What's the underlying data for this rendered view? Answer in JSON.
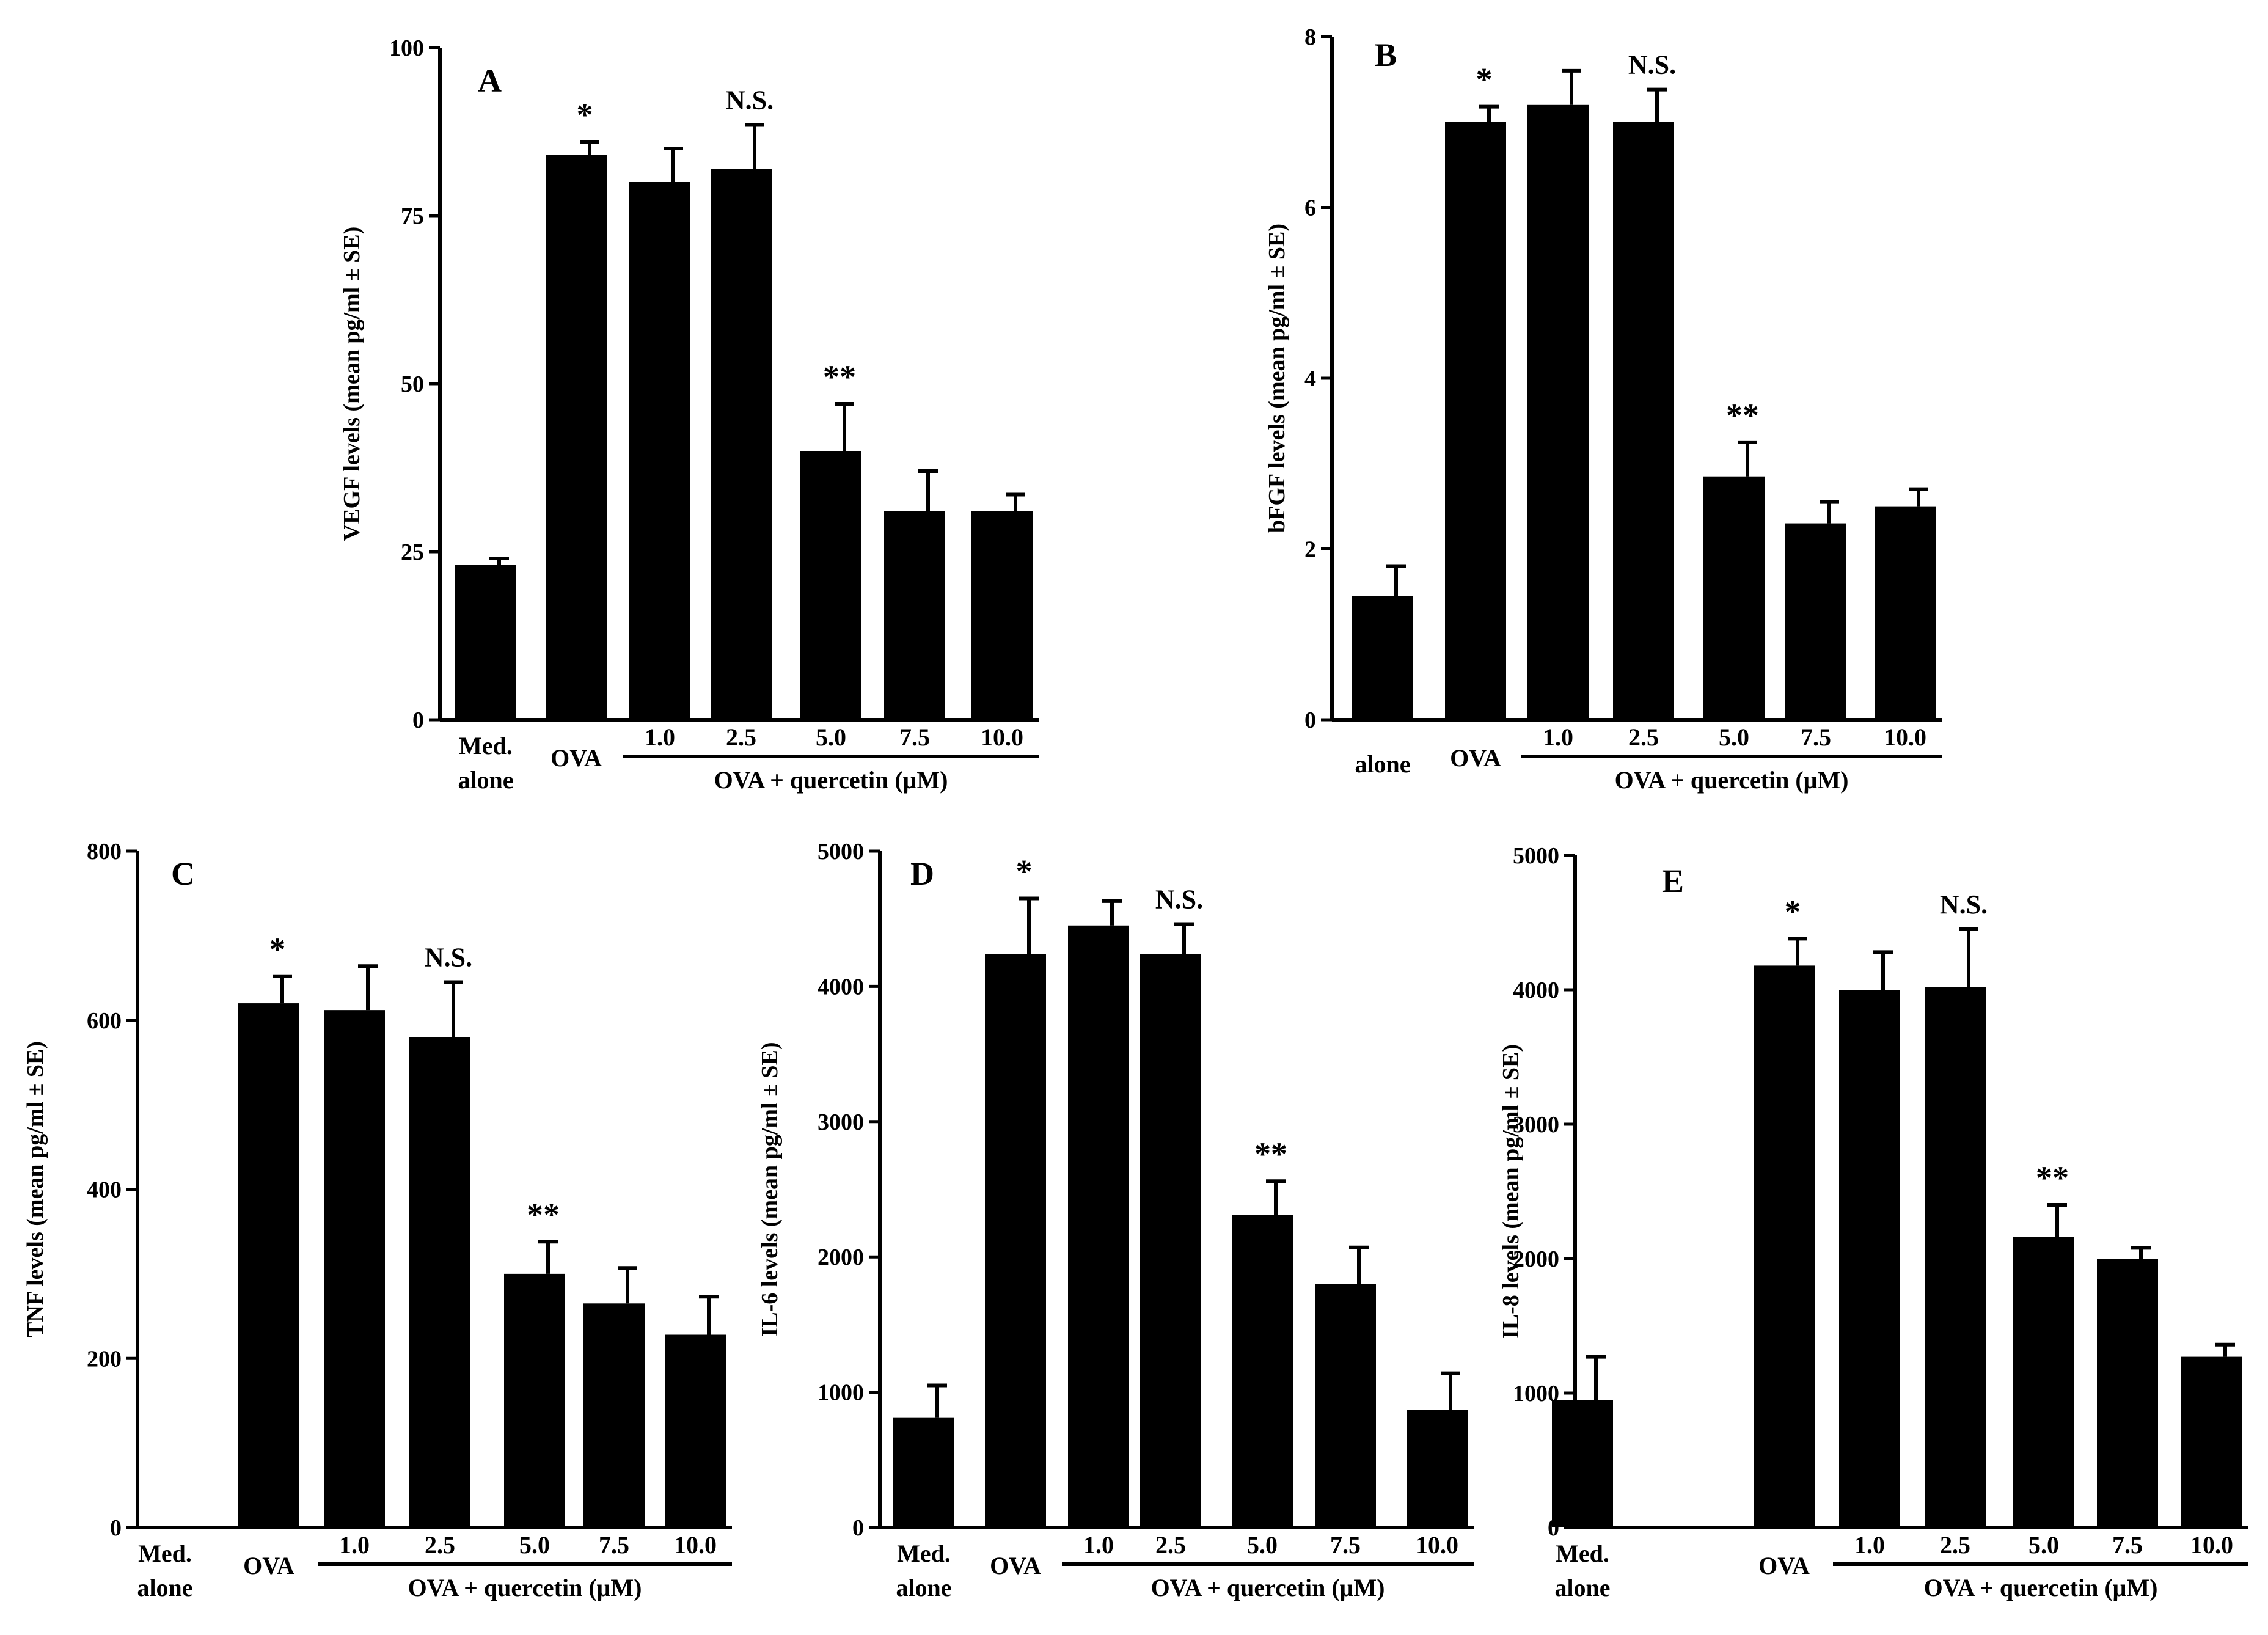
{
  "chart_data": [
    {
      "type": "bar",
      "panel": "A",
      "ylabel": "VEGF levels (mean pg/ml ± SE)",
      "ylim": [
        0,
        100
      ],
      "yticks": [
        0,
        25,
        50,
        75,
        100
      ],
      "categories": [
        "Med. alone",
        "OVA",
        "1.0",
        "2.5",
        "5.0",
        "7.5",
        "10.0"
      ],
      "group_label": "OVA + quercetin (μM)",
      "values": [
        23,
        84,
        80,
        82,
        40,
        31,
        31
      ],
      "errors": [
        1,
        2,
        5,
        6.5,
        7,
        6,
        2.5
      ],
      "annotations": [
        "",
        "*",
        "",
        "N.S.",
        "**",
        "",
        ""
      ]
    },
    {
      "type": "bar",
      "panel": "B",
      "ylabel": "bFGF levels (mean pg/ml ± SE)",
      "ylim": [
        0,
        8
      ],
      "yticks": [
        0,
        2,
        4,
        6,
        8
      ],
      "categories": [
        "alone",
        "OVA",
        "1.0",
        "2.5",
        "5.0",
        "7.5",
        "10.0"
      ],
      "group_label": "OVA + quercetin (μM)",
      "values": [
        1.45,
        7.0,
        7.2,
        7.0,
        2.85,
        2.3,
        2.5
      ],
      "errors": [
        0.35,
        0.18,
        0.4,
        0.38,
        0.4,
        0.25,
        0.2
      ],
      "annotations": [
        "",
        "*",
        "",
        "N.S.",
        "**",
        "",
        ""
      ]
    },
    {
      "type": "bar",
      "panel": "C",
      "ylabel": "TNF levels (mean pg/ml ± SE)",
      "ylim": [
        0,
        800
      ],
      "yticks": [
        0,
        200,
        400,
        600,
        800
      ],
      "categories": [
        "Med. alone",
        "OVA",
        "1.0",
        "2.5",
        "5.0",
        "7.5",
        "10.0"
      ],
      "group_label": "OVA + quercetin (μM)",
      "values": [
        0,
        620,
        612,
        580,
        300,
        265,
        228
      ],
      "errors": [
        0,
        32,
        52,
        65,
        38,
        42,
        45
      ],
      "annotations": [
        "",
        "*",
        "",
        "N.S.",
        "**",
        "",
        ""
      ]
    },
    {
      "type": "bar",
      "panel": "D",
      "ylabel": "IL-6 levels (mean pg/ml ± SE)",
      "ylim": [
        0,
        5000
      ],
      "yticks": [
        0,
        1000,
        2000,
        3000,
        4000,
        5000
      ],
      "categories": [
        "Med. alone",
        "OVA",
        "1.0",
        "2.5",
        "5.0",
        "7.5",
        "10.0"
      ],
      "group_label": "OVA + quercetin (μM)",
      "values": [
        810,
        4240,
        4450,
        4240,
        2310,
        1800,
        870
      ],
      "errors": [
        240,
        410,
        180,
        220,
        250,
        270,
        270
      ],
      "annotations": [
        "",
        "*",
        "",
        "N.S.",
        "**",
        "",
        ""
      ]
    },
    {
      "type": "bar",
      "panel": "E",
      "ylabel": "IL-8 levels (mean pg/ml ± SE)",
      "ylim": [
        0,
        5000
      ],
      "yticks": [
        0,
        1000,
        2000,
        3000,
        4000,
        5000
      ],
      "categories": [
        "Med. alone",
        "OVA",
        "1.0",
        "2.5",
        "5.0",
        "7.5",
        "10.0"
      ],
      "group_label": "OVA + quercetin (μM)",
      "values": [
        950,
        4180,
        4000,
        4020,
        2160,
        2000,
        1270
      ],
      "errors": [
        320,
        200,
        280,
        430,
        240,
        80,
        90
      ],
      "annotations": [
        "",
        "*",
        "",
        "N.S.",
        "**",
        "",
        ""
      ]
    }
  ]
}
